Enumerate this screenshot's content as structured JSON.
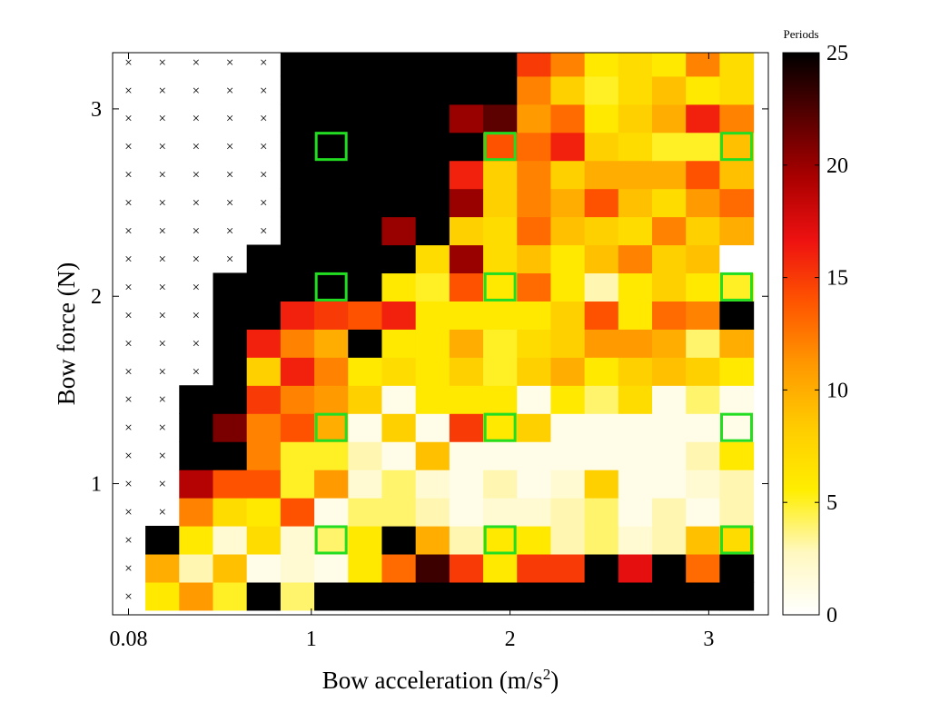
{
  "chart_data": {
    "type": "heatmap",
    "xlabel": "Bow acceleration (m/s",
    "xlabel_superscript": "2",
    "xlabel_suffix": ")",
    "ylabel": "Bow force (N)",
    "colorbar_title": "Periods",
    "x_ticks": [
      {
        "value": 0.08,
        "label": "0.08"
      },
      {
        "value": 1,
        "label": "1"
      },
      {
        "value": 2,
        "label": "2"
      },
      {
        "value": 3,
        "label": "3"
      }
    ],
    "y_ticks": [
      {
        "value": 1,
        "label": "1"
      },
      {
        "value": 2,
        "label": "2"
      },
      {
        "value": 3,
        "label": "3"
      }
    ],
    "x_range": [
      0.0,
      3.3
    ],
    "y_range": [
      0.3,
      3.3
    ],
    "grid": false,
    "color_range": [
      0,
      25
    ],
    "colorbar_ticks": [
      {
        "value": 0,
        "label": "0"
      },
      {
        "value": 5,
        "label": "5"
      },
      {
        "value": 10,
        "label": "10"
      },
      {
        "value": 15,
        "label": "15"
      },
      {
        "value": 20,
        "label": "20"
      },
      {
        "value": 25,
        "label": "25"
      }
    ],
    "colormap": [
      "#ffffff",
      "#fff8c0",
      "#ffee00",
      "#ffcc00",
      "#ff9900",
      "#ff5500",
      "#ee1111",
      "#aa0000",
      "#550000",
      "#000000"
    ],
    "highlight_color": "#22dd22",
    "x_centers": [
      0.08,
      0.25,
      0.42,
      0.59,
      0.76,
      0.93,
      1.1,
      1.27,
      1.44,
      1.61,
      1.78,
      1.95,
      2.12,
      2.29,
      2.46,
      2.63,
      2.8,
      2.97,
      3.14
    ],
    "y_centers": [
      0.4,
      0.55,
      0.7,
      0.85,
      1.0,
      1.15,
      1.3,
      1.45,
      1.6,
      1.75,
      1.9,
      2.05,
      2.2,
      2.35,
      2.5,
      2.65,
      2.8,
      2.95,
      3.1,
      3.25
    ],
    "missing_marker": "×",
    "values": [
      [
        null,
        6,
        11,
        5,
        25,
        4,
        25,
        25,
        25,
        25,
        25,
        25,
        25,
        25,
        25,
        25,
        25,
        25,
        25
      ],
      [
        null,
        10,
        3,
        9,
        1,
        2,
        1,
        6,
        13,
        23,
        15,
        6,
        15,
        15,
        25,
        17,
        25,
        13,
        25
      ],
      [
        null,
        25,
        6,
        2,
        7,
        2,
        4,
        6,
        25,
        10,
        3,
        6,
        6,
        3,
        4,
        2,
        3,
        9,
        7
      ],
      [
        null,
        null,
        12,
        7,
        6,
        14,
        1,
        4,
        4,
        3,
        1,
        2,
        2,
        3,
        4,
        1,
        3,
        1,
        3
      ],
      [
        null,
        null,
        19,
        14,
        14,
        5,
        11,
        2,
        4,
        2,
        1,
        3,
        1,
        2,
        8,
        1,
        1,
        2,
        3
      ],
      [
        null,
        null,
        25,
        25,
        12,
        5,
        5,
        3,
        1,
        9,
        1,
        1,
        1,
        1,
        1,
        1,
        1,
        3,
        6
      ],
      [
        null,
        null,
        25,
        21,
        12,
        14,
        10,
        1,
        8,
        1,
        15,
        6,
        8,
        1,
        1,
        1,
        1,
        1,
        1
      ],
      [
        null,
        null,
        25,
        25,
        15,
        12,
        11,
        8,
        1,
        6,
        6,
        6,
        1,
        6,
        4,
        7,
        1,
        4,
        1
      ],
      [
        null,
        null,
        null,
        25,
        8,
        16,
        12,
        6,
        7,
        6,
        8,
        5,
        8,
        10,
        6,
        8,
        9,
        8,
        6
      ],
      [
        null,
        null,
        null,
        25,
        16,
        12,
        10,
        25,
        6,
        6,
        10,
        5,
        7,
        8,
        11,
        11,
        10,
        4,
        10
      ],
      [
        null,
        null,
        null,
        25,
        25,
        16,
        15,
        14,
        16,
        6,
        6,
        6,
        6,
        8,
        14,
        6,
        13,
        12,
        25
      ],
      [
        null,
        null,
        null,
        25,
        25,
        25,
        25,
        25,
        6,
        5,
        14,
        6,
        13,
        6,
        3,
        6,
        8,
        6,
        5
      ],
      [
        null,
        null,
        null,
        null,
        25,
        25,
        25,
        25,
        25,
        7,
        20,
        7,
        9,
        6,
        9,
        12,
        8,
        9,
        0
      ],
      [
        null,
        null,
        null,
        null,
        null,
        25,
        25,
        25,
        20,
        25,
        8,
        7,
        13,
        9,
        8,
        7,
        12,
        8,
        10
      ],
      [
        null,
        null,
        null,
        null,
        null,
        25,
        25,
        25,
        25,
        25,
        20,
        8,
        12,
        10,
        14,
        9,
        7,
        11,
        13
      ],
      [
        null,
        null,
        null,
        null,
        null,
        25,
        25,
        25,
        25,
        25,
        16,
        8,
        12,
        8,
        10,
        10,
        10,
        14,
        9
      ],
      [
        null,
        null,
        null,
        null,
        null,
        25,
        25,
        25,
        25,
        25,
        25,
        14,
        13,
        16,
        8,
        7,
        5,
        5,
        9
      ],
      [
        null,
        null,
        null,
        null,
        null,
        25,
        25,
        25,
        25,
        25,
        20,
        22,
        11,
        13,
        6,
        8,
        10,
        16,
        12
      ],
      [
        null,
        null,
        null,
        null,
        null,
        25,
        25,
        25,
        25,
        25,
        25,
        25,
        12,
        8,
        5,
        7,
        9,
        6,
        7
      ],
      [
        null,
        null,
        null,
        null,
        null,
        25,
        25,
        25,
        25,
        25,
        25,
        25,
        15,
        12,
        6,
        7,
        6,
        12,
        7
      ]
    ],
    "highlight_x": [
      1.1,
      1.95,
      3.14
    ],
    "highlight_y": [
      0.7,
      1.3,
      2.05,
      2.8
    ]
  }
}
